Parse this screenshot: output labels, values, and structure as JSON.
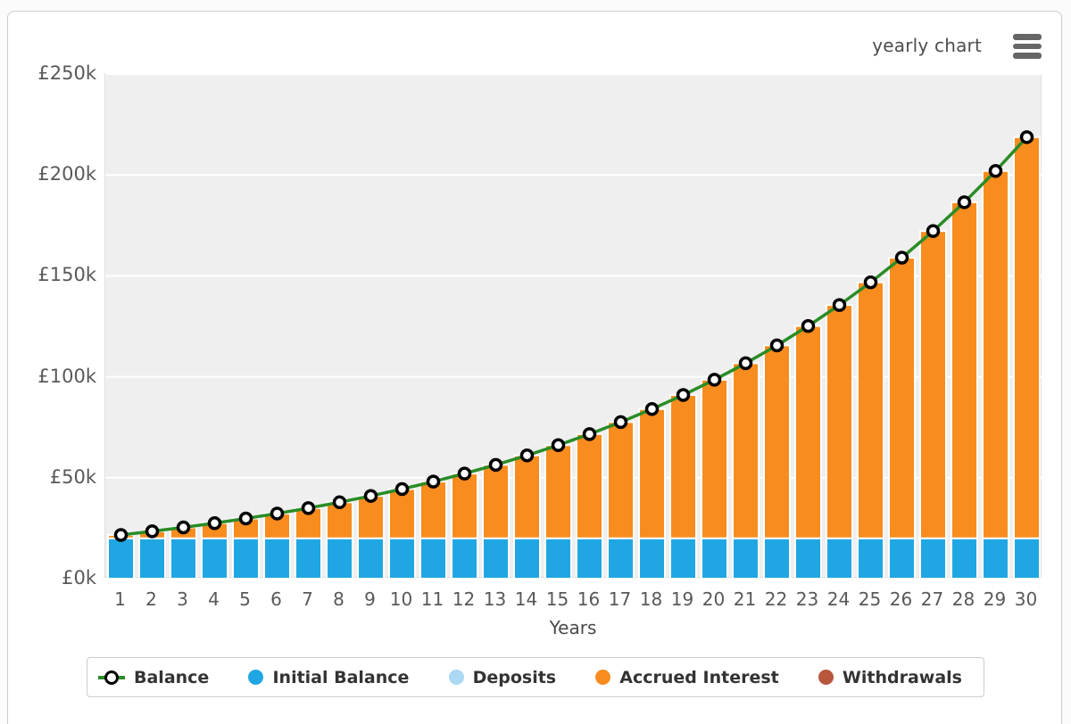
{
  "header": {
    "title": "yearly chart"
  },
  "colors": {
    "balance_line": "#2a8c26",
    "marker_ring": "#000000",
    "marker_fill": "#ffffff",
    "initial_balance": "#20a7e3",
    "deposits": "#abd8f2",
    "accrued_interest": "#f88c1e",
    "withdrawals": "#b8573e",
    "plot_background": "#efefef",
    "gridline": "#ffffff",
    "bar_border": "#ffffff",
    "axis_text": "#595959",
    "legend_text": "#333333"
  },
  "chart_data": {
    "type": "bar",
    "subtype": "stacked-bars-with-line",
    "title": "yearly chart",
    "xlabel": "Years",
    "ylabel": "",
    "ylim": [
      0,
      250000
    ],
    "grid": true,
    "legend_position": "bottom",
    "categories": [
      "1",
      "2",
      "3",
      "4",
      "5",
      "6",
      "7",
      "8",
      "9",
      "10",
      "11",
      "12",
      "13",
      "14",
      "15",
      "16",
      "17",
      "18",
      "19",
      "20",
      "21",
      "22",
      "23",
      "24",
      "25",
      "26",
      "27",
      "28",
      "29",
      "30"
    ],
    "y_ticks": [
      {
        "value": 250000,
        "label": "£250k"
      },
      {
        "value": 200000,
        "label": "£200k"
      },
      {
        "value": 150000,
        "label": "£150k"
      },
      {
        "value": 100000,
        "label": "£100k"
      },
      {
        "value": 50000,
        "label": "£50k"
      },
      {
        "value": 0,
        "label": "£0k"
      }
    ],
    "series": [
      {
        "name": "Initial Balance",
        "type": "bar",
        "color_key": "initial_balance",
        "values": [
          20000,
          20000,
          20000,
          20000,
          20000,
          20000,
          20000,
          20000,
          20000,
          20000,
          20000,
          20000,
          20000,
          20000,
          20000,
          20000,
          20000,
          20000,
          20000,
          20000,
          20000,
          20000,
          20000,
          20000,
          20000,
          20000,
          20000,
          20000,
          20000,
          20000
        ]
      },
      {
        "name": "Deposits",
        "type": "bar",
        "color_key": "deposits",
        "values": [
          0,
          0,
          0,
          0,
          0,
          0,
          0,
          0,
          0,
          0,
          0,
          0,
          0,
          0,
          0,
          0,
          0,
          0,
          0,
          0,
          0,
          0,
          0,
          0,
          0,
          0,
          0,
          0,
          0,
          0
        ]
      },
      {
        "name": "Accrued Interest",
        "type": "bar",
        "color_key": "accrued_interest",
        "values": [
          1660,
          3458,
          5405,
          7513,
          9797,
          12270,
          14949,
          17849,
          20991,
          24393,
          28078,
          32068,
          36390,
          41070,
          46139,
          51628,
          57573,
          64012,
          70985,
          78537,
          86715,
          95573,
          105165,
          115554,
          126805,
          138989,
          152186,
          166477,
          181954,
          198717
        ]
      },
      {
        "name": "Withdrawals",
        "type": "bar",
        "color_key": "withdrawals",
        "values": [
          0,
          0,
          0,
          0,
          0,
          0,
          0,
          0,
          0,
          0,
          0,
          0,
          0,
          0,
          0,
          0,
          0,
          0,
          0,
          0,
          0,
          0,
          0,
          0,
          0,
          0,
          0,
          0,
          0,
          0
        ]
      },
      {
        "name": "Balance",
        "type": "line",
        "color_key": "balance_line",
        "values": [
          21660,
          23458,
          25405,
          27513,
          29797,
          32270,
          34949,
          37849,
          40991,
          44393,
          48078,
          52068,
          56390,
          61070,
          66139,
          71628,
          77573,
          84012,
          90985,
          98537,
          106715,
          115573,
          125165,
          135554,
          146805,
          158989,
          172186,
          186477,
          201954,
          218717
        ]
      }
    ]
  },
  "legend": {
    "items": [
      {
        "label": "Balance",
        "marker": "line-ring",
        "color_key": "balance_line"
      },
      {
        "label": "Initial Balance",
        "marker": "circle",
        "color_key": "initial_balance"
      },
      {
        "label": "Deposits",
        "marker": "circle",
        "color_key": "deposits"
      },
      {
        "label": "Accrued Interest",
        "marker": "circle",
        "color_key": "accrued_interest"
      },
      {
        "label": "Withdrawals",
        "marker": "circle",
        "color_key": "withdrawals"
      }
    ]
  }
}
